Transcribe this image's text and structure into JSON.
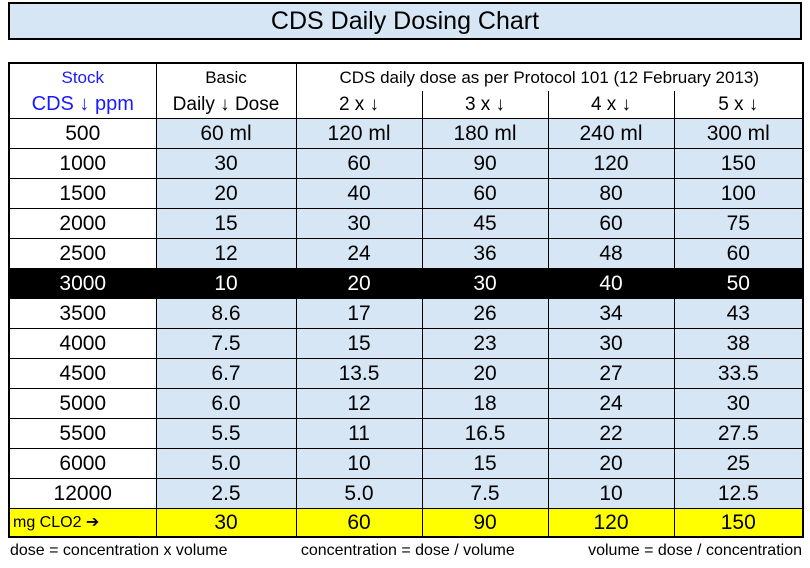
{
  "header": {
    "title": "CDS Daily Dosing Chart"
  },
  "table": {
    "head": [
      [
        "Stock",
        "Basic",
        "CDS daily dose as per Protocol 101 (12 February 2013)"
      ],
      [
        "CDS ↓ ppm",
        "Daily ↓ Dose",
        "2 x ↓",
        "3 x ↓",
        "4 x ↓",
        "5 x ↓"
      ]
    ],
    "rows": [
      [
        "500",
        "60 ml",
        "120 ml",
        "180 ml",
        "240 ml",
        "300 ml"
      ],
      [
        "1000",
        "30",
        "60",
        "90",
        "120",
        "150"
      ],
      [
        "1500",
        "20",
        "40",
        "60",
        "80",
        "100"
      ],
      [
        "2000",
        "15",
        "30",
        "45",
        "60",
        "75"
      ],
      [
        "2500",
        "12",
        "24",
        "36",
        "48",
        "60"
      ],
      [
        "3000",
        "10",
        "20",
        "30",
        "40",
        "50"
      ],
      [
        "3500",
        "8.6",
        "17",
        "26",
        "34",
        "43"
      ],
      [
        "4000",
        "7.5",
        "15",
        "23",
        "30",
        "38"
      ],
      [
        "4500",
        "6.7",
        "13.5",
        "20",
        "27",
        "33.5"
      ],
      [
        "5000",
        "6.0",
        "12",
        "18",
        "24",
        "30"
      ],
      [
        "5500",
        "5.5",
        "11",
        "16.5",
        "22",
        "27.5"
      ],
      [
        "6000",
        "5.0",
        "10",
        "15",
        "20",
        "25"
      ],
      [
        "12000",
        "2.5",
        "5.0",
        "7.5",
        "10",
        "12.5"
      ]
    ],
    "total": [
      "mg CLO2 ➔",
      "30",
      "60",
      "90",
      "120",
      "150"
    ]
  },
  "footer": [
    "dose = concentration x volume",
    "concentration = dose / volume",
    "volume = dose / concentration"
  ]
}
